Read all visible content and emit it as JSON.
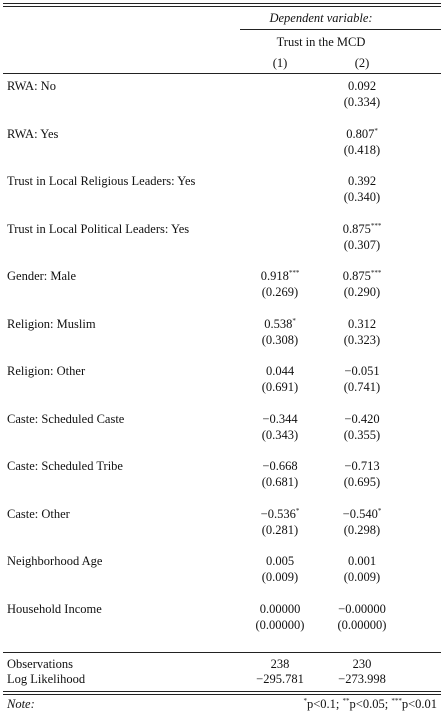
{
  "header": {
    "dep_var_label": "Dependent variable:",
    "dep_var_name": "Trust in the MCD",
    "col1": "(1)",
    "col2": "(2)"
  },
  "rows": [
    {
      "label": "RWA: No",
      "c1": "",
      "c1_stars": "",
      "c1_se": "",
      "c2": "0.092",
      "c2_stars": "",
      "c2_se": "(0.334)"
    },
    {
      "label": "RWA: Yes",
      "c1": "",
      "c1_stars": "",
      "c1_se": "",
      "c2": "0.807",
      "c2_stars": "*",
      "c2_se": "(0.418)"
    },
    {
      "label": "Trust in Local Religious Leaders: Yes",
      "c1": "",
      "c1_stars": "",
      "c1_se": "",
      "c2": "0.392",
      "c2_stars": "",
      "c2_se": "(0.340)"
    },
    {
      "label": "Trust in Local Political Leaders: Yes",
      "c1": "",
      "c1_stars": "",
      "c1_se": "",
      "c2": "0.875",
      "c2_stars": "***",
      "c2_se": "(0.307)"
    },
    {
      "label": "Gender: Male",
      "c1": "0.918",
      "c1_stars": "***",
      "c1_se": "(0.269)",
      "c2": "0.875",
      "c2_stars": "***",
      "c2_se": "(0.290)"
    },
    {
      "label": "Religion: Muslim",
      "c1": "0.538",
      "c1_stars": "*",
      "c1_se": "(0.308)",
      "c2": "0.312",
      "c2_stars": "",
      "c2_se": "(0.323)"
    },
    {
      "label": "Religion: Other",
      "c1": "0.044",
      "c1_stars": "",
      "c1_se": "(0.691)",
      "c2": "−0.051",
      "c2_stars": "",
      "c2_se": "(0.741)"
    },
    {
      "label": "Caste: Scheduled Caste",
      "c1": "−0.344",
      "c1_stars": "",
      "c1_se": "(0.343)",
      "c2": "−0.420",
      "c2_stars": "",
      "c2_se": "(0.355)"
    },
    {
      "label": "Caste: Scheduled Tribe",
      "c1": "−0.668",
      "c1_stars": "",
      "c1_se": "(0.681)",
      "c2": "−0.713",
      "c2_stars": "",
      "c2_se": "(0.695)"
    },
    {
      "label": "Caste: Other",
      "c1": "−0.536",
      "c1_stars": "*",
      "c1_se": "(0.281)",
      "c2": "−0.540",
      "c2_stars": "*",
      "c2_se": "(0.298)"
    },
    {
      "label": "Neighborhood Age",
      "c1": "0.005",
      "c1_stars": "",
      "c1_se": "(0.009)",
      "c2": "0.001",
      "c2_stars": "",
      "c2_se": "(0.009)"
    },
    {
      "label": "Household Income",
      "c1": "0.00000",
      "c1_stars": "",
      "c1_se": "(0.00000)",
      "c2": "−0.00000",
      "c2_stars": "",
      "c2_se": "(0.00000)"
    }
  ],
  "stats": [
    {
      "label": "Observations",
      "c1": "238",
      "c2": "230"
    },
    {
      "label": "Log Likelihood",
      "c1": "−295.781",
      "c2": "−273.998"
    }
  ],
  "note": {
    "label": "Note:",
    "p1_stars": "*",
    "p1_text": "p<0.1;",
    "p2_stars": "**",
    "p2_text": "p<0.05;",
    "p3_stars": "***",
    "p3_text": "p<0.01"
  }
}
